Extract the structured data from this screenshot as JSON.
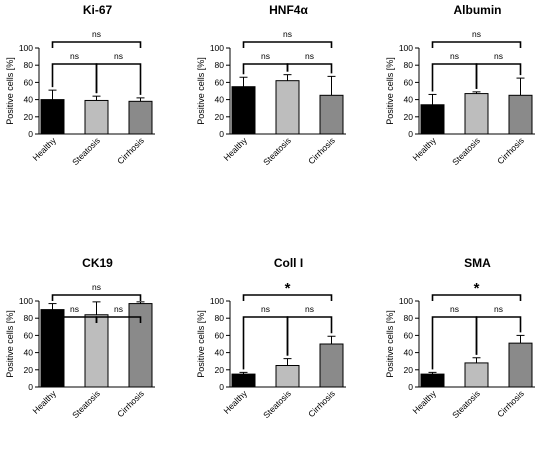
{
  "chart_data": [
    {
      "type": "bar",
      "title": "Ki-67",
      "ylabel": "Positive cells [%]",
      "ylim": [
        0,
        100
      ],
      "yticks": [
        0,
        20,
        40,
        60,
        80,
        100
      ],
      "categories": [
        "Healthy",
        "Steatosis",
        "Cirrhosis"
      ],
      "values": [
        40,
        39,
        38
      ],
      "errors": [
        11,
        5,
        4
      ],
      "colors": [
        "#000000",
        "#bdbdbd",
        "#8a8a8a"
      ],
      "significance": [
        {
          "from": 0,
          "to": 1,
          "label": "ns"
        },
        {
          "from": 1,
          "to": 2,
          "label": "ns"
        },
        {
          "from": 0,
          "to": 2,
          "label": "ns"
        }
      ]
    },
    {
      "type": "bar",
      "title": "HNF4α",
      "ylabel": "Positive cells [%]",
      "ylim": [
        0,
        100
      ],
      "yticks": [
        0,
        20,
        40,
        60,
        80,
        100
      ],
      "categories": [
        "Healthy",
        "Steatosis",
        "Cirrhosis"
      ],
      "values": [
        55,
        62,
        45
      ],
      "errors": [
        11,
        7,
        22
      ],
      "colors": [
        "#000000",
        "#bdbdbd",
        "#8a8a8a"
      ],
      "significance": [
        {
          "from": 0,
          "to": 1,
          "label": "ns"
        },
        {
          "from": 1,
          "to": 2,
          "label": "ns"
        },
        {
          "from": 0,
          "to": 2,
          "label": "ns"
        }
      ]
    },
    {
      "type": "bar",
      "title": "Albumin",
      "ylabel": "Positive cells [%]",
      "ylim": [
        0,
        100
      ],
      "yticks": [
        0,
        20,
        40,
        60,
        80,
        100
      ],
      "categories": [
        "Healthy",
        "Steatosis",
        "Cirrhosis"
      ],
      "values": [
        34,
        47,
        45
      ],
      "errors": [
        12,
        2,
        20
      ],
      "colors": [
        "#000000",
        "#bdbdbd",
        "#8a8a8a"
      ],
      "significance": [
        {
          "from": 0,
          "to": 1,
          "label": "ns"
        },
        {
          "from": 1,
          "to": 2,
          "label": "ns"
        },
        {
          "from": 0,
          "to": 2,
          "label": "ns"
        }
      ]
    },
    {
      "type": "bar",
      "title": "CK19",
      "ylabel": "Positive cells [%]",
      "ylim": [
        0,
        100
      ],
      "yticks": [
        0,
        20,
        40,
        60,
        80,
        100
      ],
      "categories": [
        "Healthy",
        "Steatosis",
        "Cirrhosis"
      ],
      "values": [
        90,
        84,
        97
      ],
      "errors": [
        7,
        15,
        2
      ],
      "colors": [
        "#000000",
        "#bdbdbd",
        "#8a8a8a"
      ],
      "significance": [
        {
          "from": 0,
          "to": 1,
          "label": "ns"
        },
        {
          "from": 1,
          "to": 2,
          "label": "ns"
        },
        {
          "from": 0,
          "to": 2,
          "label": "ns"
        }
      ]
    },
    {
      "type": "bar",
      "title": "Coll I",
      "ylabel": "Positive cells [%]",
      "ylim": [
        0,
        100
      ],
      "yticks": [
        0,
        20,
        40,
        60,
        80,
        100
      ],
      "categories": [
        "Healthy",
        "Steatosis",
        "Cirrhosis"
      ],
      "values": [
        15,
        25,
        50
      ],
      "errors": [
        2,
        8,
        9
      ],
      "colors": [
        "#000000",
        "#bdbdbd",
        "#8a8a8a"
      ],
      "significance": [
        {
          "from": 0,
          "to": 1,
          "label": "ns"
        },
        {
          "from": 1,
          "to": 2,
          "label": "ns"
        },
        {
          "from": 0,
          "to": 2,
          "label": "*"
        }
      ]
    },
    {
      "type": "bar",
      "title": "SMA",
      "ylabel": "Positive cells [%]",
      "ylim": [
        0,
        100
      ],
      "yticks": [
        0,
        20,
        40,
        60,
        80,
        100
      ],
      "categories": [
        "Healthy",
        "Steatosis",
        "Cirrhosis"
      ],
      "values": [
        15,
        28,
        51
      ],
      "errors": [
        2,
        6,
        9
      ],
      "colors": [
        "#000000",
        "#bdbdbd",
        "#8a8a8a"
      ],
      "significance": [
        {
          "from": 0,
          "to": 1,
          "label": "ns"
        },
        {
          "from": 1,
          "to": 2,
          "label": "ns"
        },
        {
          "from": 0,
          "to": 2,
          "label": "*"
        }
      ]
    }
  ]
}
